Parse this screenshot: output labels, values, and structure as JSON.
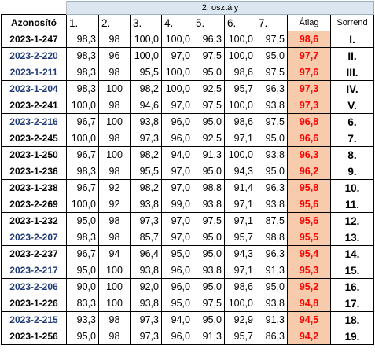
{
  "header": {
    "title": "2. osztály"
  },
  "columns": [
    "Azonosító",
    "1.",
    "2.",
    "3.",
    "4.",
    "5.",
    "6.",
    "7.",
    "Átlag",
    "Sorrend"
  ],
  "rows": [
    [
      "2023-1-247",
      "98,3",
      "98",
      "100,0",
      "100,0",
      "96,3",
      "100,0",
      "97,5",
      "98,6",
      "I."
    ],
    [
      "2023-2-220",
      "98,3",
      "96",
      "100,0",
      "97,0",
      "97,5",
      "100,0",
      "95,0",
      "97,7",
      "II."
    ],
    [
      "2023-1-211",
      "98,3",
      "98",
      "95,5",
      "100,0",
      "95,0",
      "98,6",
      "97,5",
      "97,6",
      "III."
    ],
    [
      "2023-1-204",
      "98,3",
      "100",
      "98,2",
      "100,0",
      "92,5",
      "95,7",
      "96,3",
      "97,3",
      "IV."
    ],
    [
      "2023-2-241",
      "100,0",
      "98",
      "94,6",
      "97,0",
      "97,5",
      "100,0",
      "93,8",
      "97,3",
      "V."
    ],
    [
      "2023-2-216",
      "96,7",
      "100",
      "93,8",
      "96,0",
      "95,0",
      "98,6",
      "97,5",
      "96,8",
      "6."
    ],
    [
      "2023-2-245",
      "100,0",
      "98",
      "97,3",
      "96,0",
      "92,5",
      "97,1",
      "95,0",
      "96,6",
      "7."
    ],
    [
      "2023-1-250",
      "96,7",
      "100",
      "98,2",
      "94,0",
      "91,3",
      "100,0",
      "93,8",
      "96,3",
      "8."
    ],
    [
      "2023-1-236",
      "98,3",
      "98",
      "95,5",
      "97,0",
      "95,0",
      "94,3",
      "95,0",
      "96,2",
      "9."
    ],
    [
      "2023-1-238",
      "96,7",
      "92",
      "98,2",
      "97,0",
      "98,8",
      "91,4",
      "96,3",
      "95,8",
      "10."
    ],
    [
      "2023-2-269",
      "100,0",
      "92",
      "93,8",
      "99,0",
      "93,8",
      "97,1",
      "93,8",
      "95,6",
      "11."
    ],
    [
      "2023-1-232",
      "95,0",
      "98",
      "97,3",
      "97,0",
      "97,5",
      "97,1",
      "87,5",
      "95,6",
      "12."
    ],
    [
      "2023-2-207",
      "98,3",
      "98",
      "85,7",
      "97,0",
      "95,0",
      "95,7",
      "98,8",
      "95,5",
      "13."
    ],
    [
      "2023-2-237",
      "96,7",
      "94",
      "96,4",
      "95,0",
      "95,0",
      "94,3",
      "96,3",
      "95,4",
      "14."
    ],
    [
      "2023-2-217",
      "95,0",
      "100",
      "93,8",
      "96,0",
      "93,8",
      "97,1",
      "91,3",
      "95,3",
      "15."
    ],
    [
      "2023-2-206",
      "90,0",
      "100",
      "92,0",
      "96,0",
      "95,0",
      "98,6",
      "95,0",
      "95,2",
      "16."
    ],
    [
      "2023-1-226",
      "83,3",
      "100",
      "93,8",
      "95,0",
      "97,5",
      "100,0",
      "93,8",
      "94,8",
      "17."
    ],
    [
      "2023-2-215",
      "93,3",
      "98",
      "97,3",
      "94,0",
      "95,0",
      "92,9",
      "91,3",
      "94,5",
      "18."
    ],
    [
      "2023-1-256",
      "95,0",
      "98",
      "97,3",
      "96,0",
      "91,3",
      "95,7",
      "86,3",
      "94,2",
      "19."
    ]
  ]
}
